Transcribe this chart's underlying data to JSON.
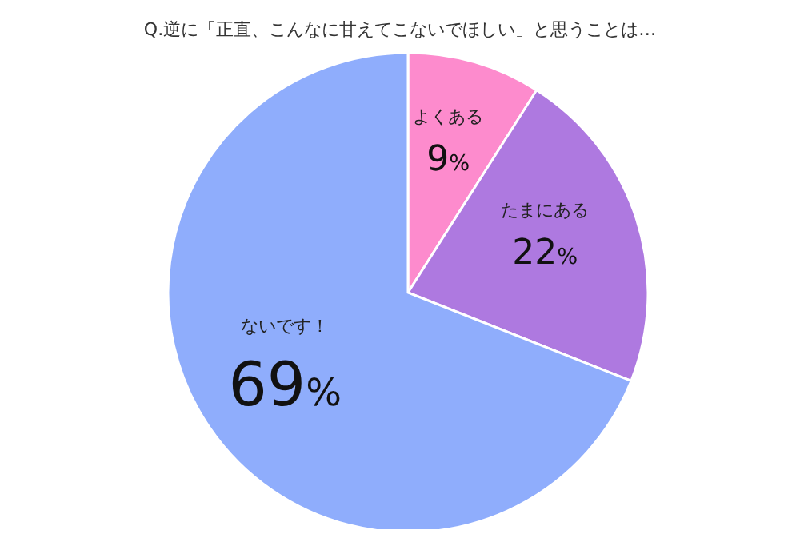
{
  "chart_data": {
    "type": "pie",
    "title": "Q.逆に「正直、こんなに甘えてこないでほしい」と思うことは…",
    "categories": [
      "よくある",
      "たまにある",
      "ないです！"
    ],
    "values": [
      9,
      22,
      69
    ],
    "value_labels": [
      "9%",
      "22%",
      "69%"
    ],
    "colors": [
      "#fd8bcd",
      "#ae79e0",
      "#8fadfc"
    ]
  }
}
